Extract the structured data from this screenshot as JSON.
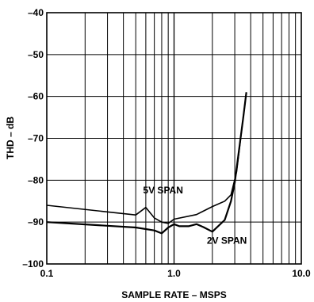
{
  "chart_data": {
    "type": "line",
    "xlabel": "SAMPLE RATE – MSPS",
    "ylabel": "THD – dB",
    "xscale": "log",
    "xlim": [
      0.1,
      10
    ],
    "ylim": [
      -100,
      -40
    ],
    "grid": true,
    "x_ticks": [
      {
        "value": 0.1,
        "label": "0.1"
      },
      {
        "value": 1,
        "label": "1.0"
      },
      {
        "value": 10,
        "label": "10.0"
      }
    ],
    "y_ticks": [
      {
        "value": -40,
        "label": "–40"
      },
      {
        "value": -50,
        "label": "–50"
      },
      {
        "value": -60,
        "label": "–60"
      },
      {
        "value": -70,
        "label": "–70"
      },
      {
        "value": -80,
        "label": "–80"
      },
      {
        "value": -90,
        "label": "–90"
      },
      {
        "value": -100,
        "label": "–100"
      }
    ],
    "series": [
      {
        "name": "5V SPAN",
        "x": [
          0.1,
          0.5,
          0.6,
          0.7,
          0.8,
          0.9,
          1.0,
          1.5,
          2.0,
          2.5,
          2.8,
          3.1,
          3.4,
          3.7
        ],
        "y": [
          -86,
          -88.3,
          -86.5,
          -89,
          -90,
          -90.3,
          -89.3,
          -88.2,
          -86.3,
          -85,
          -83.5,
          -78,
          -68,
          -59
        ]
      },
      {
        "name": "2V SPAN",
        "x": [
          0.1,
          0.5,
          0.7,
          0.8,
          0.9,
          1.0,
          1.1,
          1.3,
          1.5,
          1.7,
          2.0,
          2.5,
          2.8,
          3.0,
          3.2,
          3.5,
          3.7
        ],
        "y": [
          -90,
          -91.3,
          -92,
          -92.7,
          -91.3,
          -90.5,
          -91,
          -91,
          -90.5,
          -91.2,
          -92.3,
          -89.5,
          -85,
          -80.5,
          -74,
          -65,
          -59
        ]
      }
    ],
    "annotations": [
      {
        "text": "5V SPAN",
        "x": 0.82,
        "y": -83.2
      },
      {
        "text": "2V SPAN",
        "x": 2.6,
        "y": -95.2
      }
    ]
  }
}
